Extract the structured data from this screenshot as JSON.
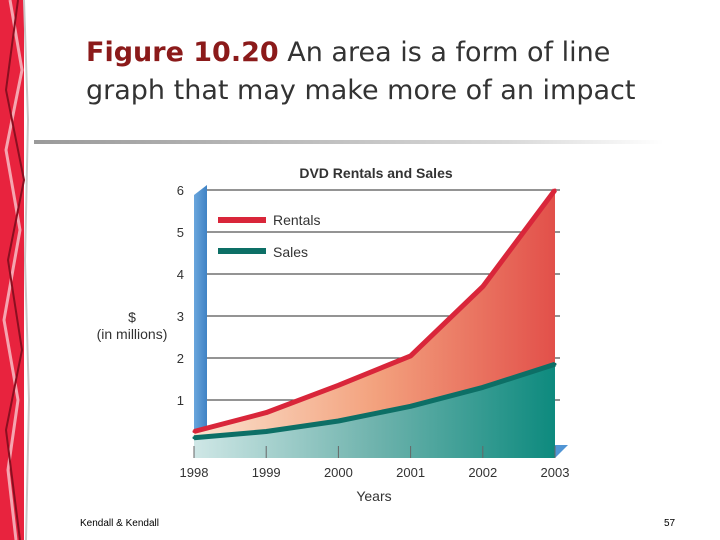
{
  "slide": {
    "title_bold": "Figure 10.20",
    "title_rest": " An area is a form of line graph that may make more of an impact",
    "footer_left": "Kendall & Kendall",
    "page_number": "57"
  },
  "colors": {
    "rentals": "#d9263a",
    "sales": "#0d6f66",
    "axis_wall": "#4b8fcf",
    "deco_red": "#e8233e"
  },
  "chart_data": {
    "type": "area",
    "title": "DVD Rentals and Sales",
    "xlabel": "Years",
    "ylabel": [
      "$",
      "(in millions)"
    ],
    "categories": [
      "1998",
      "1999",
      "2000",
      "2001",
      "2002",
      "2003"
    ],
    "yticks": [
      "1",
      "2",
      "3",
      "4",
      "5",
      "6"
    ],
    "ylim": [
      0,
      6.2
    ],
    "series": [
      {
        "name": "Rentals",
        "values": [
          0.25,
          0.7,
          1.35,
          2.05,
          3.7,
          6.0
        ]
      },
      {
        "name": "Sales",
        "values": [
          0.1,
          0.25,
          0.5,
          0.85,
          1.3,
          1.85
        ]
      }
    ],
    "legend_position": "top-left"
  }
}
